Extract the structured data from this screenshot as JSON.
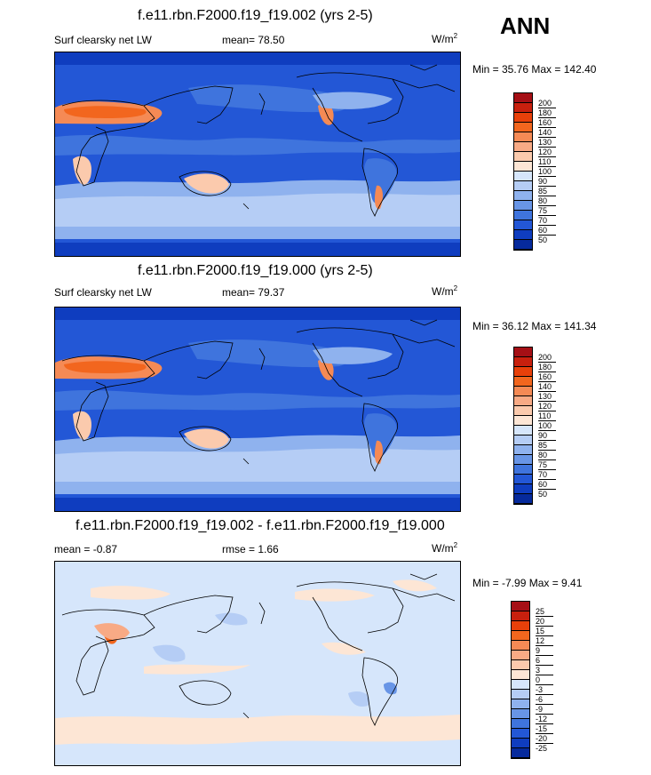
{
  "season": "ANN",
  "panels": [
    {
      "title": "f.e11.rbn.F2000.f19_f19.002 (yrs 2-5)",
      "left_label": "Surf clearsky net LW",
      "center_label": "mean=  78.50",
      "units": "W/m",
      "units_sup": "2",
      "minmax": "Min =  35.76 Max = 142.40",
      "cbar_labels": [
        "200",
        "180",
        "160",
        "140",
        "130",
        "120",
        "110",
        "100",
        "90",
        "85",
        "80",
        "75",
        "70",
        "60",
        "50"
      ],
      "cbar_colors": [
        "#a50f15",
        "#c8200e",
        "#e8400a",
        "#f2661e",
        "#f58a55",
        "#f8aa85",
        "#fbcaad",
        "#fde6d5",
        "#d6e6fb",
        "#b5cdf5",
        "#8fb2ee",
        "#6895e6",
        "#3f74dd",
        "#2357d6",
        "#0f3dbf",
        "#062a9c"
      ]
    },
    {
      "title": "f.e11.rbn.F2000.f19_f19.000 (yrs 2-5)",
      "left_label": "Surf clearsky net LW",
      "center_label": "mean=  79.37",
      "units": "W/m",
      "units_sup": "2",
      "minmax": "Min =  36.12 Max = 141.34",
      "cbar_labels": [
        "200",
        "180",
        "160",
        "140",
        "130",
        "120",
        "110",
        "100",
        "90",
        "85",
        "80",
        "75",
        "70",
        "60",
        "50"
      ],
      "cbar_colors": [
        "#a50f15",
        "#c8200e",
        "#e8400a",
        "#f2661e",
        "#f58a55",
        "#f8aa85",
        "#fbcaad",
        "#fde6d5",
        "#d6e6fb",
        "#b5cdf5",
        "#8fb2ee",
        "#6895e6",
        "#3f74dd",
        "#2357d6",
        "#0f3dbf",
        "#062a9c"
      ]
    },
    {
      "title": "f.e11.rbn.F2000.f19_f19.002 - f.e11.rbn.F2000.f19_f19.000",
      "left_label": "mean =  -0.87",
      "center_label": "rmse =   1.66",
      "units": "W/m",
      "units_sup": "2",
      "minmax": "Min =  -7.99 Max =   9.41",
      "cbar_labels": [
        "25",
        "20",
        "15",
        "12",
        "9",
        "6",
        "3",
        "0",
        "-3",
        "-6",
        "-9",
        "-12",
        "-15",
        "-20",
        "-25"
      ],
      "cbar_colors": [
        "#a50f15",
        "#c8200e",
        "#e8400a",
        "#f2661e",
        "#f58a55",
        "#f8aa85",
        "#fbcaad",
        "#fde6d5",
        "#d6e6fb",
        "#b5cdf5",
        "#8fb2ee",
        "#6895e6",
        "#3f74dd",
        "#2357d6",
        "#0f3dbf",
        "#062a9c"
      ]
    }
  ]
}
